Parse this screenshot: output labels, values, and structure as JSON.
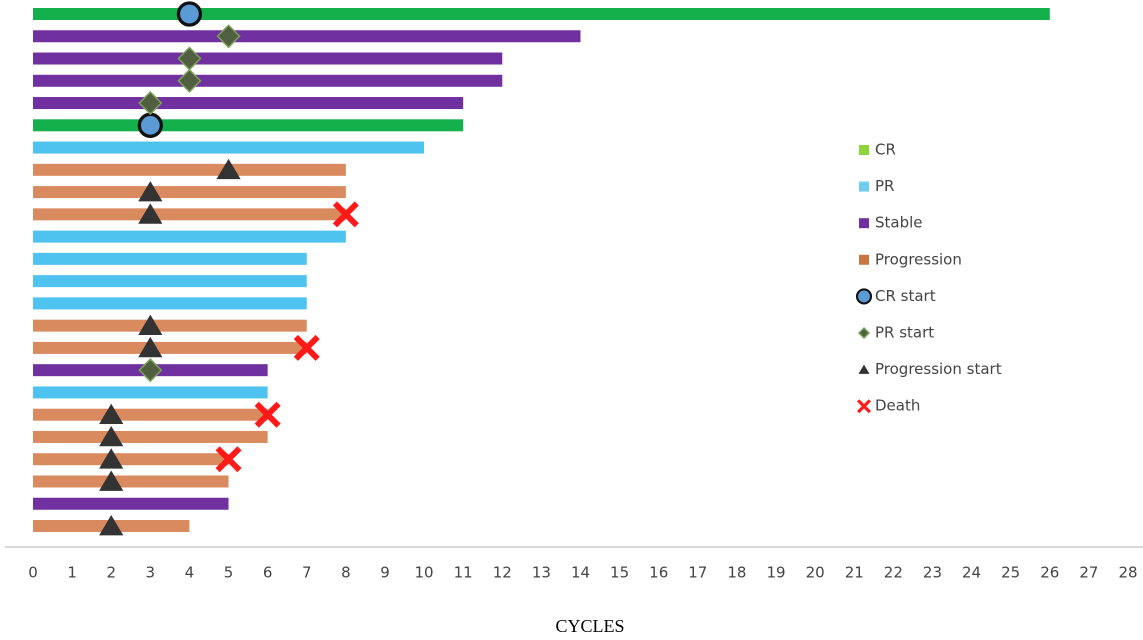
{
  "chart_data": {
    "type": "swimmer",
    "x_label": "CYCLES",
    "xlim": [
      0,
      28
    ],
    "xticks": [
      0,
      1,
      2,
      3,
      4,
      5,
      6,
      7,
      8,
      9,
      10,
      11,
      12,
      13,
      14,
      15,
      16,
      17,
      18,
      19,
      20,
      21,
      22,
      23,
      24,
      25,
      26,
      27,
      28
    ],
    "series": [
      {
        "name": "CR",
        "color": "#14b04c",
        "legend_color": "#8fd43a",
        "values": [
          26,
          null,
          null,
          null,
          null,
          11,
          null,
          null,
          null,
          null,
          null,
          null,
          null,
          null,
          null,
          null,
          null,
          null,
          null,
          null,
          null,
          null,
          null,
          null
        ]
      },
      {
        "name": "PR",
        "color": "#4fc3f0",
        "legend_color": "#6fcdf2",
        "values": [
          null,
          null,
          null,
          null,
          null,
          null,
          10,
          null,
          null,
          null,
          8,
          7,
          7,
          7,
          null,
          null,
          null,
          6,
          null,
          null,
          null,
          null,
          null,
          null
        ]
      },
      {
        "name": "Stable",
        "color": "#7030a0",
        "legend_color": "#7030a0",
        "values": [
          null,
          14,
          12,
          12,
          11,
          null,
          null,
          null,
          null,
          null,
          null,
          null,
          null,
          null,
          null,
          null,
          6,
          null,
          null,
          null,
          null,
          null,
          5,
          null
        ]
      },
      {
        "name": "Progression",
        "color": "#d98b5f",
        "legend_color": "#c9763f",
        "values": [
          null,
          null,
          null,
          null,
          null,
          null,
          null,
          8,
          8,
          8,
          null,
          null,
          null,
          null,
          7,
          7,
          null,
          null,
          6,
          6,
          5,
          5,
          null,
          4
        ]
      }
    ],
    "markers": [
      {
        "name": "CR start",
        "shape": "circle",
        "color": "#5b9bd5",
        "values": [
          4,
          null,
          null,
          null,
          null,
          3,
          null,
          null,
          null,
          null,
          null,
          null,
          null,
          null,
          null,
          null,
          null,
          null,
          null,
          null,
          null,
          null,
          null,
          null
        ]
      },
      {
        "name": "PR start",
        "shape": "diamond",
        "color": "#4f5f3f",
        "values": [
          null,
          5,
          4,
          4,
          3,
          null,
          null,
          null,
          null,
          null,
          null,
          null,
          null,
          null,
          null,
          null,
          3,
          null,
          null,
          null,
          null,
          null,
          null,
          null
        ]
      },
      {
        "name": "Progression start",
        "shape": "triangle",
        "color": "#333333",
        "values": [
          null,
          null,
          null,
          null,
          null,
          null,
          null,
          5,
          3,
          3,
          null,
          null,
          null,
          null,
          3,
          3,
          null,
          null,
          2,
          2,
          2,
          2,
          null,
          2
        ]
      },
      {
        "name": "Death",
        "shape": "cross",
        "color": "#ff1a1a",
        "values": [
          null,
          null,
          null,
          null,
          null,
          null,
          null,
          null,
          null,
          8,
          null,
          null,
          null,
          null,
          null,
          7,
          null,
          null,
          6,
          null,
          5,
          null,
          null,
          null
        ]
      }
    ]
  }
}
